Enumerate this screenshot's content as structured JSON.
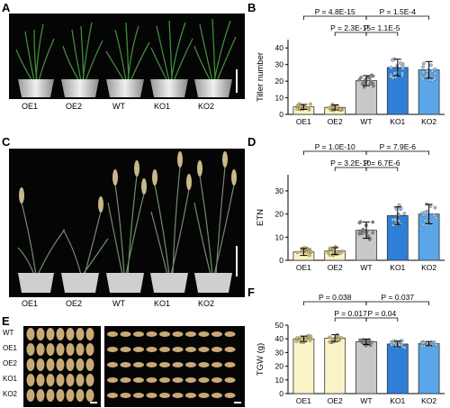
{
  "panels": {
    "A": "A",
    "B": "B",
    "C": "C",
    "D": "D",
    "E": "E",
    "F": "F"
  },
  "genotypes": [
    "OE1",
    "OE2",
    "WT",
    "KO1",
    "KO2"
  ],
  "seed_row_labels": [
    "WT",
    "OE1",
    "OE2",
    "KO1",
    "KO2"
  ],
  "colors": {
    "OE": "#fbf3c8",
    "WT": "#c8c8c8",
    "KO1": "#2e7fd8",
    "KO2": "#5aa6e8",
    "point_OE": "#d8c66a",
    "point_WT": "#888888",
    "point_KO": "#9cc7ef"
  },
  "chart_data": [
    {
      "id": "B",
      "type": "bar",
      "categories": [
        "OE1",
        "OE2",
        "WT",
        "KO1",
        "KO2"
      ],
      "values": [
        4.5,
        4.2,
        20.3,
        28.2,
        26.8
      ],
      "errors": [
        1.5,
        1.5,
        3.0,
        5.0,
        5.0
      ],
      "ylabel": "Tiller number",
      "ylim": [
        0,
        45
      ],
      "yticks": [
        0,
        10,
        20,
        30,
        40
      ],
      "annotations": [
        {
          "text": "P = 4.8E-15",
          "from": 0,
          "to": 2,
          "level": 2
        },
        {
          "text": "P = 1.5E-4",
          "from": 2,
          "to": 4,
          "level": 2
        },
        {
          "text": "P = 2.3E-15",
          "from": 1,
          "to": 2,
          "level": 1
        },
        {
          "text": "P = 1.1E-5",
          "from": 2,
          "to": 3,
          "level": 1
        }
      ]
    },
    {
      "id": "D",
      "type": "bar",
      "categories": [
        "OE1",
        "OE2",
        "WT",
        "KO1",
        "KO2"
      ],
      "values": [
        3.6,
        4.0,
        13.0,
        19.3,
        20.0
      ],
      "errors": [
        1.5,
        1.5,
        3.5,
        3.8,
        4.2
      ],
      "ylabel": "ETN",
      "ylim": [
        0,
        37
      ],
      "yticks": [
        0,
        10,
        20,
        30
      ],
      "annotations": [
        {
          "text": "P = 1.0E-10",
          "from": 0,
          "to": 2,
          "level": 2
        },
        {
          "text": "P = 7.9E-6",
          "from": 2,
          "to": 4,
          "level": 2
        },
        {
          "text": "P = 3.2E-10",
          "from": 1,
          "to": 2,
          "level": 1
        },
        {
          "text": "P = 6.7E-6",
          "from": 2,
          "to": 3,
          "level": 1
        }
      ]
    },
    {
      "id": "F",
      "type": "bar",
      "categories": [
        "OE1",
        "OE2",
        "WT",
        "KO1",
        "KO2"
      ],
      "values": [
        40.0,
        40.5,
        37.8,
        36.2,
        36.5
      ],
      "errors": [
        2.0,
        2.5,
        2.0,
        2.0,
        1.5
      ],
      "ylabel": "TGW (g)",
      "ylim": [
        0,
        50
      ],
      "yticks": [
        0,
        10,
        20,
        30,
        40,
        50
      ],
      "annotations": [
        {
          "text": "P = 0.038",
          "from": 0,
          "to": 2,
          "level": 2
        },
        {
          "text": "P = 0.037",
          "from": 2,
          "to": 4,
          "level": 2
        },
        {
          "text": "P = 0.017",
          "from": 1,
          "to": 2,
          "level": 1
        },
        {
          "text": "P = 0.04",
          "from": 2,
          "to": 3,
          "level": 1
        }
      ]
    }
  ]
}
